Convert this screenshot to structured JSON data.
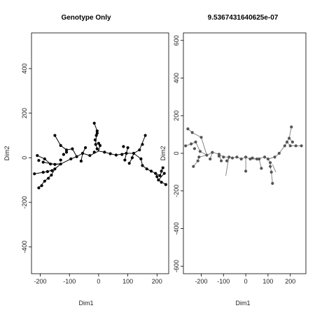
{
  "chart_data": [
    {
      "type": "scatter",
      "title": "Genotype Only",
      "xlabel": "Dim1",
      "ylabel": "Dim2",
      "xlim": [
        -230,
        240
      ],
      "ylim": [
        -520,
        560
      ],
      "xticks": [
        -200,
        -100,
        0,
        100,
        200
      ],
      "yticks": [
        -400,
        -200,
        0,
        200,
        400
      ],
      "grid": false,
      "point_color": "#000000",
      "edge_color": "#000000",
      "points": [
        [
          -220,
          -72
        ],
        [
          -190,
          -65
        ],
        [
          -175,
          -62
        ],
        [
          -160,
          -58
        ],
        [
          -150,
          -30
        ],
        [
          -165,
          -28
        ],
        [
          -190,
          -20
        ],
        [
          -205,
          -12
        ],
        [
          -210,
          10
        ],
        [
          -185,
          -5
        ],
        [
          -205,
          -135
        ],
        [
          -195,
          -125
        ],
        [
          -185,
          -105
        ],
        [
          -172,
          -92
        ],
        [
          -162,
          -78
        ],
        [
          -150,
          -50
        ],
        [
          -130,
          -28
        ],
        [
          -130,
          -10
        ],
        [
          -120,
          15
        ],
        [
          -110,
          25
        ],
        [
          -95,
          -5
        ],
        [
          -75,
          5
        ],
        [
          -90,
          40
        ],
        [
          -110,
          35
        ],
        [
          -130,
          55
        ],
        [
          -150,
          100
        ],
        [
          -55,
          20
        ],
        [
          -60,
          -15
        ],
        [
          -45,
          45
        ],
        [
          -30,
          10
        ],
        [
          -15,
          25
        ],
        [
          -5,
          40
        ],
        [
          -10,
          60
        ],
        [
          -12,
          80
        ],
        [
          -15,
          155
        ],
        [
          -5,
          120
        ],
        [
          -5,
          110
        ],
        [
          -8,
          100
        ],
        [
          0,
          65
        ],
        [
          5,
          55
        ],
        [
          20,
          25
        ],
        [
          40,
          18
        ],
        [
          60,
          12
        ],
        [
          80,
          15
        ],
        [
          95,
          20
        ],
        [
          100,
          45
        ],
        [
          85,
          50
        ],
        [
          90,
          -10
        ],
        [
          105,
          -25
        ],
        [
          115,
          0
        ],
        [
          120,
          20
        ],
        [
          140,
          35
        ],
        [
          150,
          60
        ],
        [
          160,
          100
        ],
        [
          145,
          -5
        ],
        [
          150,
          -35
        ],
        [
          165,
          -50
        ],
        [
          180,
          -60
        ],
        [
          195,
          -70
        ],
        [
          200,
          -85
        ],
        [
          205,
          -100
        ],
        [
          210,
          -80
        ],
        [
          215,
          -60
        ],
        [
          220,
          -45
        ],
        [
          225,
          -70
        ],
        [
          230,
          -120
        ],
        [
          215,
          -110
        ]
      ],
      "edges": [
        [
          [
            -220,
            -72
          ],
          [
            -175,
            -62
          ],
          [
            -150,
            -50
          ],
          [
            -130,
            -28
          ]
        ],
        [
          [
            -210,
            10
          ],
          [
            -185,
            -5
          ],
          [
            -165,
            -28
          ],
          [
            -130,
            -28
          ]
        ],
        [
          [
            -205,
            -135
          ],
          [
            -185,
            -105
          ],
          [
            -162,
            -78
          ],
          [
            -150,
            -50
          ]
        ],
        [
          [
            -190,
            -20
          ],
          [
            -150,
            -30
          ],
          [
            -130,
            -28
          ],
          [
            -95,
            -5
          ],
          [
            -75,
            5
          ],
          [
            -55,
            20
          ],
          [
            -30,
            10
          ],
          [
            0,
            30
          ],
          [
            20,
            25
          ],
          [
            40,
            18
          ],
          [
            60,
            12
          ],
          [
            95,
            20
          ],
          [
            120,
            20
          ],
          [
            140,
            35
          ],
          [
            160,
            100
          ]
        ],
        [
          [
            -150,
            100
          ],
          [
            -130,
            55
          ],
          [
            -110,
            35
          ],
          [
            -90,
            40
          ],
          [
            -75,
            5
          ]
        ],
        [
          [
            -60,
            -15
          ],
          [
            -55,
            20
          ],
          [
            -45,
            45
          ]
        ],
        [
          [
            -15,
            155
          ],
          [
            -5,
            120
          ],
          [
            -5,
            110
          ],
          [
            -8,
            100
          ],
          [
            -10,
            60
          ],
          [
            -5,
            40
          ],
          [
            0,
            30
          ]
        ],
        [
          [
            0,
            65
          ],
          [
            5,
            55
          ],
          [
            0,
            30
          ]
        ],
        [
          [
            100,
            45
          ],
          [
            95,
            20
          ],
          [
            90,
            -10
          ]
        ],
        [
          [
            105,
            -25
          ],
          [
            115,
            0
          ],
          [
            120,
            20
          ]
        ],
        [
          [
            120,
            20
          ],
          [
            145,
            -5
          ],
          [
            150,
            -35
          ],
          [
            165,
            -50
          ],
          [
            180,
            -60
          ],
          [
            195,
            -70
          ],
          [
            205,
            -100
          ],
          [
            230,
            -120
          ]
        ],
        [
          [
            195,
            -70
          ],
          [
            210,
            -80
          ],
          [
            220,
            -45
          ]
        ],
        [
          [
            205,
            -100
          ],
          [
            225,
            -70
          ]
        ]
      ]
    },
    {
      "type": "scatter",
      "title": "9.5367431640625e-07",
      "xlabel": "Dim1",
      "ylabel": "Dim2",
      "xlim": [
        -280,
        270
      ],
      "ylim": [
        -640,
        640
      ],
      "xticks": [
        -200,
        -100,
        0,
        100,
        200
      ],
      "yticks": [
        -600,
        -400,
        -200,
        0,
        200,
        400,
        600
      ],
      "grid": false,
      "point_color": "#555555",
      "edge_color": "#888888",
      "points": [
        [
          -270,
          40
        ],
        [
          -245,
          50
        ],
        [
          -225,
          60
        ],
        [
          -200,
          85
        ],
        [
          -230,
          25
        ],
        [
          -210,
          -20
        ],
        [
          -215,
          -40
        ],
        [
          -235,
          -70
        ],
        [
          -205,
          10
        ],
        [
          -175,
          -10
        ],
        [
          -160,
          -30
        ],
        [
          -150,
          5
        ],
        [
          -120,
          -5
        ],
        [
          -110,
          -40
        ],
        [
          -100,
          -20
        ],
        [
          -85,
          -40
        ],
        [
          -75,
          -20
        ],
        [
          -60,
          -25
        ],
        [
          -40,
          -20
        ],
        [
          -20,
          -30
        ],
        [
          0,
          -20
        ],
        [
          0,
          -95
        ],
        [
          20,
          -30
        ],
        [
          30,
          -25
        ],
        [
          50,
          -30
        ],
        [
          60,
          -30
        ],
        [
          70,
          -80
        ],
        [
          85,
          -20
        ],
        [
          100,
          -30
        ],
        [
          110,
          -70
        ],
        [
          115,
          -100
        ],
        [
          120,
          -160
        ],
        [
          110,
          -50
        ],
        [
          130,
          -20
        ],
        [
          150,
          0
        ],
        [
          175,
          40
        ],
        [
          185,
          60
        ],
        [
          195,
          80
        ],
        [
          205,
          140
        ],
        [
          200,
          40
        ],
        [
          210,
          60
        ],
        [
          225,
          40
        ],
        [
          250,
          40
        ],
        [
          -260,
          130
        ],
        [
          -240,
          110
        ],
        [
          -120,
          -15
        ]
      ],
      "edges": [
        [
          [
            -270,
            40
          ],
          [
            -245,
            50
          ],
          [
            -225,
            60
          ],
          [
            -205,
            10
          ],
          [
            -175,
            -10
          ],
          [
            -150,
            5
          ],
          [
            -120,
            -5
          ],
          [
            -100,
            -20
          ],
          [
            -75,
            -20
          ],
          [
            -60,
            -25
          ],
          [
            -40,
            -20
          ],
          [
            -20,
            -30
          ],
          [
            0,
            -20
          ],
          [
            20,
            -30
          ],
          [
            50,
            -30
          ],
          [
            85,
            -20
          ],
          [
            100,
            -30
          ],
          [
            130,
            -20
          ],
          [
            150,
            0
          ],
          [
            175,
            40
          ],
          [
            195,
            80
          ],
          [
            205,
            140
          ]
        ],
        [
          [
            -260,
            130
          ],
          [
            -240,
            110
          ],
          [
            -200,
            85
          ],
          [
            -175,
            -10
          ]
        ],
        [
          [
            -235,
            -70
          ],
          [
            -215,
            -40
          ],
          [
            -210,
            -20
          ],
          [
            -175,
            -10
          ]
        ],
        [
          [
            -160,
            -30
          ],
          [
            -150,
            5
          ]
        ],
        [
          [
            -110,
            -40
          ],
          [
            -120,
            -5
          ]
        ],
        [
          [
            -85,
            -40
          ],
          [
            -75,
            -20
          ]
        ],
        [
          [
            -90,
            -120
          ],
          [
            -80,
            -50
          ],
          [
            -75,
            -20
          ]
        ],
        [
          [
            0,
            -95
          ],
          [
            0,
            -20
          ]
        ],
        [
          [
            30,
            -25
          ],
          [
            50,
            -30
          ]
        ],
        [
          [
            70,
            -80
          ],
          [
            60,
            -30
          ]
        ],
        [
          [
            120,
            -160
          ],
          [
            115,
            -100
          ],
          [
            110,
            -70
          ],
          [
            110,
            -50
          ],
          [
            100,
            -30
          ]
        ],
        [
          [
            120,
            -60
          ],
          [
            135,
            -100
          ]
        ],
        [
          [
            185,
            60
          ],
          [
            200,
            40
          ],
          [
            225,
            40
          ],
          [
            250,
            40
          ]
        ],
        [
          [
            210,
            60
          ],
          [
            195,
            80
          ]
        ]
      ]
    }
  ]
}
